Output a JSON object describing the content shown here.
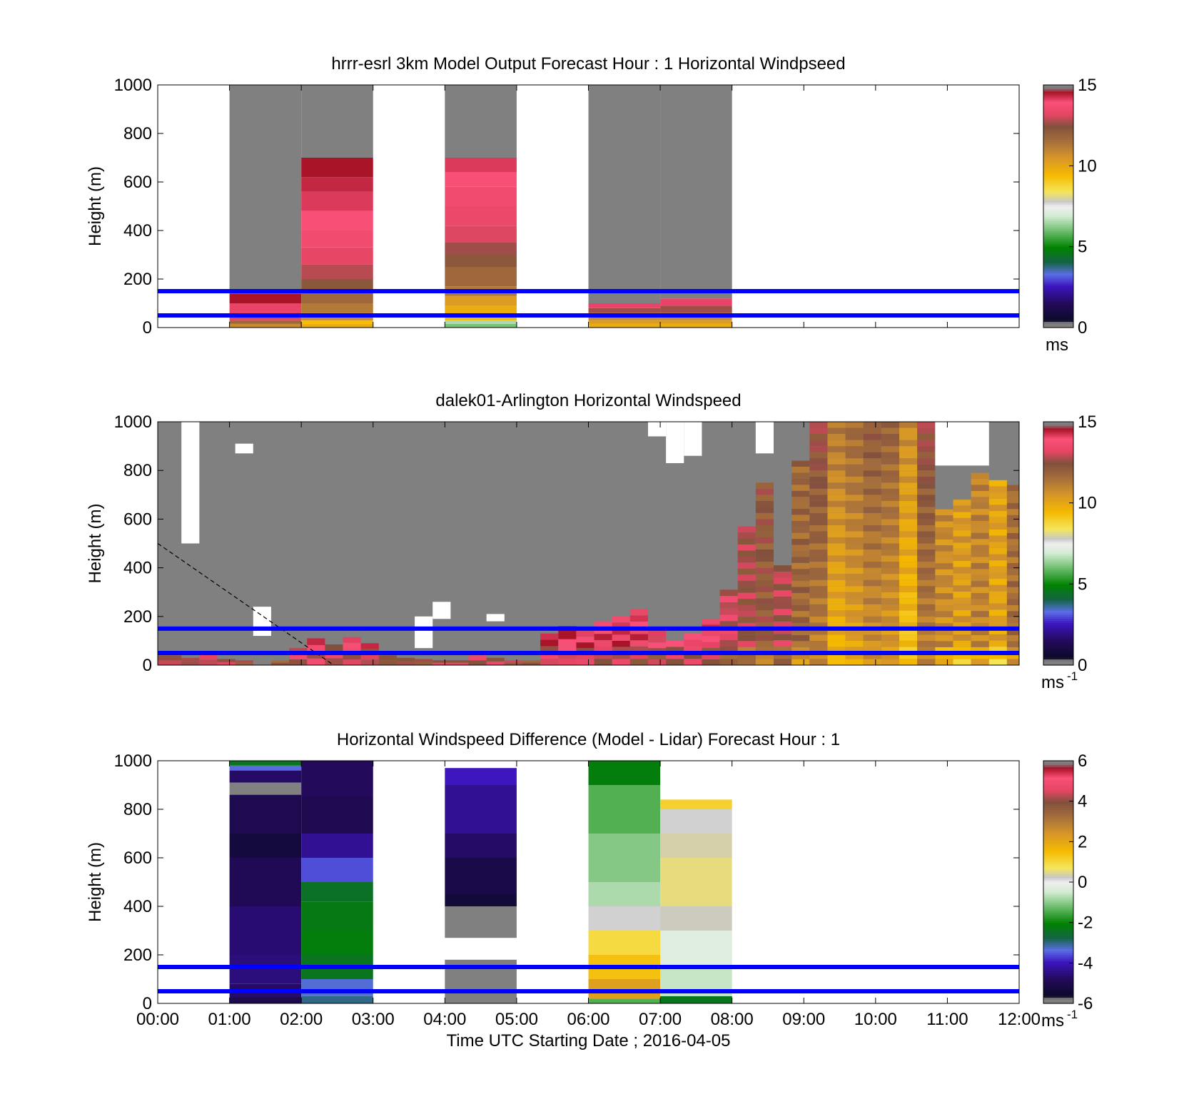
{
  "figure": {
    "xlabel": "Time UTC  Starting Date ; 2016-04-05",
    "xticks": [
      "00:00",
      "01:00",
      "02:00",
      "03:00",
      "04:00",
      "05:00",
      "06:00",
      "07:00",
      "08:00",
      "09:00",
      "10:00",
      "11:00",
      "12:00"
    ],
    "ylabel": "Height (m)",
    "yticks": [
      "0",
      "200",
      "400",
      "600",
      "800",
      "1000"
    ],
    "reference_lines_m": [
      50,
      150
    ],
    "reference_line_color": "#0000ff",
    "missing_color": "#808080"
  },
  "panels": [
    {
      "title": "hrrr-esrl 3km Model Output   Forecast Hour : 1 Horizontal Windpseed",
      "cbar": {
        "ticks": [
          "0",
          "5",
          "10",
          "15"
        ],
        "unit": "ms",
        "unit_sup": "",
        "min": 0,
        "max": 15,
        "colormap": "speed"
      }
    },
    {
      "title": "dalek01-Arlington  Horizontal Windspeed",
      "cbar": {
        "ticks": [
          "0",
          "5",
          "10",
          "15"
        ],
        "unit": "ms",
        "unit_sup": "-1",
        "min": 0,
        "max": 15,
        "colormap": "speed"
      }
    },
    {
      "title": "Horizontal Windspeed Difference (Model - Lidar) Forecast Hour : 1",
      "cbar": {
        "ticks": [
          "-6",
          "-4",
          "-2",
          "0",
          "2",
          "4",
          "6"
        ],
        "unit": "ms",
        "unit_sup": "-1",
        "min": -6,
        "max": 6,
        "colormap": "diff"
      }
    }
  ],
  "chart_data": [
    {
      "type": "heatmap",
      "title": "hrrr-esrl 3km Model Output   Forecast Hour : 1 Horizontal Windpseed",
      "xlabel": "",
      "ylabel": "Height (m)",
      "xlim": [
        0,
        12
      ],
      "ylim": [
        0,
        1000
      ],
      "grid": false,
      "value_unit": "ms",
      "clim": [
        0,
        15
      ],
      "columns": [
        {
          "t0": 1,
          "t1": 2,
          "cells": [
            [
              0,
              15,
              11
            ],
            [
              15,
              30,
              12
            ],
            [
              30,
              50,
              13.5
            ],
            [
              50,
              100,
              14.5
            ],
            [
              100,
              140,
              15
            ],
            [
              140,
              1000,
              null
            ]
          ]
        },
        {
          "t0": 2,
          "t1": 3,
          "cells": [
            [
              0,
              15,
              10
            ],
            [
              15,
              30,
              9.5
            ],
            [
              30,
              60,
              11
            ],
            [
              60,
              100,
              11.5
            ],
            [
              100,
              150,
              12
            ],
            [
              150,
              200,
              12.5
            ],
            [
              200,
              260,
              13.2
            ],
            [
              260,
              330,
              13.6
            ],
            [
              330,
              400,
              14
            ],
            [
              400,
              480,
              14.3
            ],
            [
              480,
              560,
              14.6
            ],
            [
              560,
              620,
              14.8
            ],
            [
              620,
              700,
              15
            ],
            [
              700,
              1000,
              null
            ]
          ]
        },
        {
          "t0": 4,
          "t1": 5,
          "cells": [
            [
              0,
              15,
              6
            ],
            [
              15,
              30,
              6.5
            ],
            [
              30,
              50,
              9.5
            ],
            [
              50,
              90,
              10
            ],
            [
              90,
              130,
              10.5
            ],
            [
              130,
              170,
              11.5
            ],
            [
              170,
              250,
              12
            ],
            [
              250,
              300,
              12.5
            ],
            [
              300,
              350,
              13
            ],
            [
              350,
              420,
              13.5
            ],
            [
              420,
              500,
              13.8
            ],
            [
              500,
              580,
              14
            ],
            [
              580,
              640,
              14.3
            ],
            [
              640,
              700,
              14.6
            ],
            [
              700,
              1000,
              null
            ]
          ]
        },
        {
          "t0": 6,
          "t1": 7,
          "cells": [
            [
              0,
              15,
              10
            ],
            [
              15,
              30,
              10.5
            ],
            [
              30,
              60,
              11
            ],
            [
              60,
              80,
              13
            ],
            [
              80,
              100,
              14.5
            ],
            [
              100,
              1000,
              null
            ]
          ]
        },
        {
          "t0": 7,
          "t1": 8,
          "cells": [
            [
              0,
              15,
              10
            ],
            [
              15,
              30,
              10.5
            ],
            [
              30,
              60,
              11
            ],
            [
              60,
              90,
              13
            ],
            [
              90,
              120,
              14.5
            ],
            [
              120,
              1000,
              null
            ]
          ]
        }
      ]
    },
    {
      "type": "heatmap",
      "title": "dalek01-Arlington  Horizontal Windspeed",
      "xlabel": "",
      "ylabel": "Height (m)",
      "xlim": [
        0,
        12
      ],
      "ylim": [
        0,
        1000
      ],
      "grid": false,
      "value_unit": "ms-1",
      "clim": [
        0,
        15
      ],
      "background": "missing",
      "profiles": [
        {
          "t0": 0.0,
          "t1": 0.33,
          "top": 40,
          "v": 14.5
        },
        {
          "t0": 0.33,
          "t1": 0.58,
          "top": 30,
          "v": 14.0
        },
        {
          "t0": 0.58,
          "t1": 0.83,
          "top": 45,
          "v": 14.8
        },
        {
          "t0": 0.83,
          "t1": 1.08,
          "top": 25,
          "v": 14.2
        },
        {
          "t0": 1.08,
          "t1": 1.33,
          "top": 20,
          "v": 14.0
        },
        {
          "t0": 1.58,
          "t1": 1.83,
          "top": 20,
          "v": 13.5
        },
        {
          "t0": 1.83,
          "t1": 2.08,
          "top": 70,
          "v": 14.6
        },
        {
          "t0": 2.08,
          "t1": 2.33,
          "top": 110,
          "v": 14.8
        },
        {
          "t0": 2.33,
          "t1": 2.58,
          "top": 85,
          "v": 14.5
        },
        {
          "t0": 2.58,
          "t1": 2.83,
          "top": 115,
          "v": 14.6
        },
        {
          "t0": 2.83,
          "t1": 3.08,
          "top": 90,
          "v": 14.3
        },
        {
          "t0": 3.08,
          "t1": 3.33,
          "top": 40,
          "v": 14.0
        },
        {
          "t0": 3.33,
          "t1": 3.58,
          "top": 30,
          "v": 13.8
        },
        {
          "t0": 3.58,
          "t1": 3.83,
          "top": 25,
          "v": 14.0
        },
        {
          "t0": 3.83,
          "t1": 4.33,
          "top": 20,
          "v": 14.2
        },
        {
          "t0": 4.33,
          "t1": 4.58,
          "top": 40,
          "v": 14.6
        },
        {
          "t0": 4.58,
          "t1": 4.83,
          "top": 30,
          "v": 14.4
        },
        {
          "t0": 4.83,
          "t1": 5.08,
          "top": 20,
          "v": 14.0
        },
        {
          "t0": 5.08,
          "t1": 5.33,
          "top": 20,
          "v": 13.8
        },
        {
          "t0": 5.33,
          "t1": 5.58,
          "top": 130,
          "v": 14.7
        },
        {
          "t0": 5.58,
          "t1": 5.83,
          "top": 160,
          "v": 14.9
        },
        {
          "t0": 5.83,
          "t1": 6.08,
          "top": 140,
          "v": 14.6
        },
        {
          "t0": 6.08,
          "t1": 6.33,
          "top": 180,
          "v": 14.4
        },
        {
          "t0": 6.33,
          "t1": 6.58,
          "top": 200,
          "v": 14.5
        },
        {
          "t0": 6.58,
          "t1": 6.83,
          "top": 230,
          "v": 14.3
        },
        {
          "t0": 6.83,
          "t1": 7.08,
          "top": 140,
          "v": 14.0
        },
        {
          "t0": 7.08,
          "t1": 7.33,
          "top": 100,
          "v": 14.4
        },
        {
          "t0": 7.33,
          "t1": 7.58,
          "top": 130,
          "v": 14.6
        },
        {
          "t0": 7.58,
          "t1": 7.83,
          "top": 190,
          "v": 14.2
        },
        {
          "t0": 7.83,
          "t1": 8.08,
          "top": 310,
          "v": 13.5
        },
        {
          "t0": 8.08,
          "t1": 8.33,
          "top": 570,
          "v": 13.0
        },
        {
          "t0": 8.33,
          "t1": 8.58,
          "top": 750,
          "v": 12.5
        },
        {
          "t0": 8.58,
          "t1": 8.83,
          "top": 410,
          "v": 13.2
        },
        {
          "t0": 8.83,
          "t1": 9.08,
          "top": 840,
          "v": 12.0
        },
        {
          "t0": 9.08,
          "t1": 9.33,
          "top": 1000,
          "v": 11.5
        },
        {
          "t0": 9.33,
          "t1": 9.58,
          "top": 1000,
          "v": 10.0
        },
        {
          "t0": 9.58,
          "t1": 9.83,
          "top": 1000,
          "v": 10.5
        },
        {
          "t0": 9.83,
          "t1": 10.08,
          "top": 1000,
          "v": 11.0
        },
        {
          "t0": 10.08,
          "t1": 10.33,
          "top": 1000,
          "v": 10.8
        },
        {
          "t0": 10.33,
          "t1": 10.58,
          "top": 1000,
          "v": 9.5
        },
        {
          "t0": 10.58,
          "t1": 10.83,
          "top": 1000,
          "v": 11.5
        },
        {
          "t0": 10.83,
          "t1": 11.08,
          "top": 640,
          "v": 11.0
        },
        {
          "t0": 11.08,
          "t1": 11.33,
          "top": 680,
          "v": 10.5
        },
        {
          "t0": 11.33,
          "t1": 11.58,
          "top": 790,
          "v": 11.2
        },
        {
          "t0": 11.58,
          "t1": 11.83,
          "top": 760,
          "v": 10.3
        },
        {
          "t0": 11.83,
          "t1": 12.0,
          "top": 740,
          "v": 11.8
        }
      ],
      "gaps": [
        {
          "t0": 0.33,
          "t1": 0.58,
          "y0": 500,
          "y1": 1000
        },
        {
          "t0": 1.08,
          "t1": 1.33,
          "y0": 870,
          "y1": 910
        },
        {
          "t0": 1.33,
          "t1": 1.58,
          "y0": 120,
          "y1": 240
        },
        {
          "t0": 3.58,
          "t1": 3.83,
          "y0": 70,
          "y1": 200
        },
        {
          "t0": 3.83,
          "t1": 4.08,
          "y0": 190,
          "y1": 260
        },
        {
          "t0": 4.58,
          "t1": 4.83,
          "y0": 180,
          "y1": 210
        },
        {
          "t0": 6.83,
          "t1": 7.08,
          "y0": 940,
          "y1": 1000
        },
        {
          "t0": 7.08,
          "t1": 7.33,
          "y0": 830,
          "y1": 1000
        },
        {
          "t0": 7.33,
          "t1": 7.58,
          "y0": 860,
          "y1": 1000
        },
        {
          "t0": 8.33,
          "t1": 8.58,
          "y0": 870,
          "y1": 1000
        },
        {
          "t0": 10.83,
          "t1": 11.58,
          "y0": 820,
          "y1": 1000
        }
      ],
      "overlay_line": {
        "style": "dashed",
        "x": [
          0,
          2.45
        ],
        "y": [
          500,
          0
        ]
      }
    },
    {
      "type": "heatmap",
      "title": "Horizontal Windspeed Difference (Model - Lidar) Forecast Hour : 1",
      "xlabel": "Time UTC  Starting Date ; 2016-04-05",
      "ylabel": "Height (m)",
      "xlim": [
        0,
        12
      ],
      "ylim": [
        0,
        1000
      ],
      "grid": false,
      "value_unit": "ms-1",
      "clim": [
        -6,
        6
      ],
      "columns": [
        {
          "t0": 1,
          "t1": 2,
          "cells": [
            [
              0,
              25,
              -5.3
            ],
            [
              25,
              80,
              -5.0
            ],
            [
              80,
              200,
              -4.8
            ],
            [
              200,
              400,
              -4.9
            ],
            [
              400,
              600,
              -5.2
            ],
            [
              600,
              700,
              -5.6
            ],
            [
              700,
              860,
              -5.3
            ],
            [
              860,
              910,
              null
            ],
            [
              910,
              960,
              -5.0
            ],
            [
              960,
              980,
              -3.6
            ],
            [
              980,
              1000,
              -2.5
            ]
          ]
        },
        {
          "t0": 2,
          "t1": 3,
          "cells": [
            [
              0,
              30,
              -3.2
            ],
            [
              30,
              100,
              -3.5
            ],
            [
              100,
              200,
              -2.5
            ],
            [
              200,
              300,
              -2.3
            ],
            [
              300,
              420,
              -2.4
            ],
            [
              420,
              500,
              -2.6
            ],
            [
              500,
              600,
              -3.8
            ],
            [
              600,
              700,
              -4.6
            ],
            [
              700,
              850,
              -5.3
            ],
            [
              850,
              1000,
              -5.1
            ]
          ]
        },
        {
          "t0": 4,
          "t1": 5,
          "cells": [
            [
              0,
              180,
              null
            ],
            [
              270,
              400,
              null
            ],
            [
              400,
              450,
              -5.7
            ],
            [
              450,
              600,
              -5.4
            ],
            [
              600,
              700,
              -5.0
            ],
            [
              700,
              900,
              -4.6
            ],
            [
              900,
              970,
              -4.2
            ]
          ]
        },
        {
          "t0": 6,
          "t1": 7,
          "cells": [
            [
              0,
              20,
              -1.5
            ],
            [
              20,
              100,
              2.3
            ],
            [
              100,
              200,
              1.5
            ],
            [
              200,
              300,
              1.0
            ],
            [
              300,
              400,
              0.2
            ],
            [
              400,
              500,
              -0.8
            ],
            [
              500,
              700,
              -1.1
            ],
            [
              700,
              900,
              -1.5
            ],
            [
              900,
              1000,
              -2.3
            ]
          ]
        },
        {
          "t0": 7,
          "t1": 8,
          "cells": [
            [
              0,
              30,
              -2.5
            ],
            [
              30,
              150,
              -0.6
            ],
            [
              150,
              300,
              -0.3
            ],
            [
              300,
              400,
              0.3
            ],
            [
              400,
              600,
              0.6
            ],
            [
              600,
              700,
              0.4
            ],
            [
              700,
              800,
              0.2
            ],
            [
              800,
              840,
              1.2
            ]
          ]
        }
      ]
    }
  ]
}
